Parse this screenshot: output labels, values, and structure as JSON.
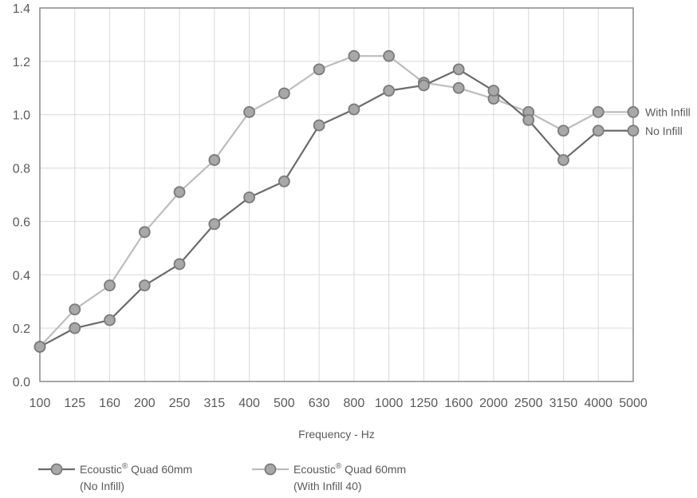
{
  "chart_data": {
    "type": "line",
    "categories": [
      "100",
      "125",
      "160",
      "200",
      "250",
      "315",
      "400",
      "500",
      "630",
      "800",
      "1000",
      "1250",
      "1600",
      "2000",
      "2500",
      "3150",
      "4000",
      "5000"
    ],
    "xlabel": "Frequency - Hz",
    "ylabel": "",
    "ylim": [
      0,
      1.4
    ],
    "yticks": [
      "0.0",
      "0.2",
      "0.4",
      "0.6",
      "0.8",
      "1.0",
      "1.2",
      "1.4"
    ],
    "grid": true,
    "series": [
      {
        "name": "Ecoustic® Quad 60mm (No Infill)",
        "legend_line1": "Ecoustic",
        "legend_sup": "®",
        "legend_line1b": " Quad 60mm",
        "legend_line2": "(No Infill)",
        "end_label": "No Infill",
        "color": "#6b6b6b",
        "values": [
          0.13,
          0.2,
          0.23,
          0.36,
          0.44,
          0.59,
          0.69,
          0.75,
          0.96,
          1.02,
          1.09,
          1.11,
          1.17,
          1.09,
          0.98,
          0.83,
          0.94,
          0.94
        ]
      },
      {
        "name": "Ecoustic® Quad 60mm (With Infill 40)",
        "legend_line1": "Ecoustic",
        "legend_sup": "®",
        "legend_line1b": " Quad 60mm",
        "legend_line2": "(With Infill 40)",
        "end_label": "With Infill",
        "color": "#bdbdbd",
        "values": [
          0.13,
          0.27,
          0.36,
          0.56,
          0.71,
          0.83,
          1.01,
          1.08,
          1.17,
          1.22,
          1.22,
          1.12,
          1.1,
          1.06,
          1.01,
          0.94,
          1.01,
          1.01
        ]
      }
    ],
    "legend_position": "bottom-left"
  }
}
